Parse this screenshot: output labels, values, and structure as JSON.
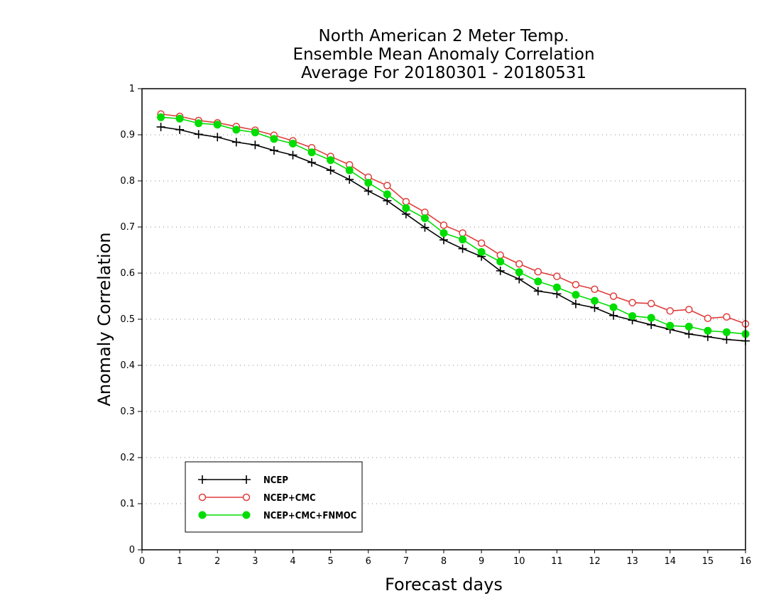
{
  "chart_data": {
    "type": "line",
    "title": [
      "North American 2 Meter Temp.",
      "Ensemble Mean Anomaly Correlation",
      "Average For 20180301 - 20180531"
    ],
    "xlabel": "Forecast days",
    "ylabel": "Anomaly Correlation",
    "xlim": [
      0,
      16
    ],
    "ylim": [
      0,
      1
    ],
    "xticks": [
      "0",
      "1",
      "2",
      "3",
      "4",
      "5",
      "6",
      "7",
      "8",
      "9",
      "10",
      "11",
      "12",
      "13",
      "14",
      "15",
      "16"
    ],
    "yticks": [
      "0",
      "0.1",
      "0.2",
      "0.3",
      "0.4",
      "0.5",
      "0.6",
      "0.7",
      "0.8",
      "0.9",
      "1"
    ],
    "grid": "dotted horizontal",
    "legend_position": "bottom-left",
    "x": [
      0.5,
      1,
      1.5,
      2,
      2.5,
      3,
      3.5,
      4,
      4.5,
      5,
      5.5,
      6,
      6.5,
      7,
      7.5,
      8,
      8.5,
      9,
      9.5,
      10,
      10.5,
      11,
      11.5,
      12,
      12.5,
      13,
      13.5,
      14,
      14.5,
      15,
      15.5,
      16
    ],
    "series": [
      {
        "name": "NCEP",
        "color": "#000000",
        "marker": "plus",
        "values": [
          0.917,
          0.911,
          0.901,
          0.895,
          0.884,
          0.878,
          0.866,
          0.856,
          0.84,
          0.823,
          0.803,
          0.778,
          0.757,
          0.728,
          0.699,
          0.672,
          0.653,
          0.636,
          0.605,
          0.587,
          0.561,
          0.555,
          0.533,
          0.525,
          0.508,
          0.498,
          0.488,
          0.478,
          0.468,
          0.462,
          0.456,
          0.453
        ]
      },
      {
        "name": "NCEP+CMC",
        "color": "#e03c3c",
        "marker": "open-circle",
        "values": [
          0.945,
          0.94,
          0.931,
          0.926,
          0.918,
          0.91,
          0.899,
          0.887,
          0.872,
          0.853,
          0.835,
          0.808,
          0.79,
          0.755,
          0.732,
          0.704,
          0.687,
          0.665,
          0.639,
          0.62,
          0.603,
          0.593,
          0.575,
          0.565,
          0.55,
          0.536,
          0.534,
          0.518,
          0.521,
          0.502,
          0.505,
          0.49
        ]
      },
      {
        "name": "NCEP+CMC+FNMOC",
        "color": "#00dd00",
        "marker": "filled-circle",
        "values": [
          0.938,
          0.935,
          0.925,
          0.922,
          0.911,
          0.905,
          0.891,
          0.881,
          0.862,
          0.845,
          0.823,
          0.796,
          0.771,
          0.741,
          0.719,
          0.687,
          0.673,
          0.646,
          0.625,
          0.602,
          0.582,
          0.569,
          0.553,
          0.54,
          0.526,
          0.507,
          0.503,
          0.486,
          0.484,
          0.475,
          0.472,
          0.468
        ]
      }
    ]
  }
}
